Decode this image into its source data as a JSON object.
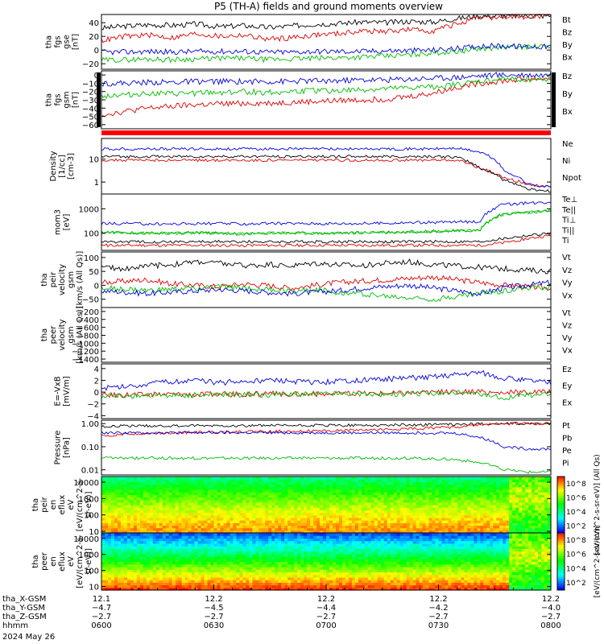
{
  "title": "P5 (TH-A) fields and ground moments overview",
  "chart_data": [
    {
      "type": "line",
      "ylabel": [
        "tha",
        "fgs",
        "gse",
        "[nT]"
      ],
      "yticks": [
        -20,
        0,
        20,
        40
      ],
      "ylim": [
        -28,
        52
      ],
      "series": [
        {
          "name": "Bt",
          "color": "#000000",
          "values": [
            32,
            35,
            37,
            36,
            38,
            34,
            36,
            33,
            35,
            38,
            39,
            41,
            40,
            42,
            41,
            46,
            50,
            50,
            50,
            50
          ]
        },
        {
          "name": "Bz",
          "color": "#dd0000",
          "values": [
            14,
            20,
            22,
            18,
            24,
            20,
            22,
            16,
            18,
            22,
            24,
            28,
            27,
            30,
            28,
            38,
            47,
            48,
            49,
            49
          ]
        },
        {
          "name": "By",
          "color": "#00bb00",
          "values": [
            -15,
            -14,
            -13,
            -14,
            -13,
            -12,
            -12,
            -14,
            -13,
            -12,
            -11,
            -10,
            -9,
            -7,
            -4,
            -2,
            2,
            4,
            5,
            5
          ]
        },
        {
          "name": "Bx",
          "color": "#0000dd",
          "values": [
            -3,
            -3,
            -2,
            -3,
            -2,
            -2,
            -2,
            -3,
            -3,
            -2,
            -2,
            -2,
            -1,
            -1,
            0,
            2,
            6,
            6,
            5,
            5
          ]
        }
      ]
    },
    {
      "type": "line",
      "ylabel": [
        "tha",
        "fgs",
        "gsm",
        "[nT]"
      ],
      "yticks": [
        -60,
        -50,
        -40,
        -30,
        -20,
        -10,
        0
      ],
      "ylim": [
        -65,
        5
      ],
      "series": [
        {
          "name": "Bz",
          "color": "#dd0000",
          "values": [
            -48,
            -44,
            -40,
            -38,
            -36,
            -35,
            -34,
            -34,
            -33,
            -32,
            -31,
            -30,
            -29,
            -26,
            -22,
            -15,
            -10,
            -7,
            -5,
            -4
          ]
        },
        {
          "name": "By",
          "color": "#00bb00",
          "values": [
            -25,
            -24,
            -22,
            -23,
            -22,
            -21,
            -20,
            -21,
            -20,
            -19,
            -19,
            -18,
            -17,
            -16,
            -14,
            -12,
            -8,
            -5,
            -5,
            -5
          ]
        },
        {
          "name": "Bx",
          "color": "#0000dd",
          "values": [
            -10,
            -10,
            -9,
            -9,
            -8,
            -8,
            -8,
            -8,
            -8,
            -7,
            -7,
            -6,
            -6,
            -5,
            -4,
            -3,
            -1,
            0,
            0,
            0
          ]
        }
      ]
    },
    {
      "type": "line",
      "scale": "log",
      "ylabel": [
        "Density",
        "[1/cc]",
        "[cm-3]"
      ],
      "yticks": [
        1,
        10
      ],
      "ylim": [
        0.3,
        80
      ],
      "series": [
        {
          "name": "Ne",
          "color": "#dd0000",
          "values": [
            9,
            9,
            9,
            9,
            9,
            9,
            9,
            9,
            9,
            9,
            9,
            9,
            9,
            9,
            9,
            9,
            4,
            1.5,
            0.8,
            0.6
          ]
        },
        {
          "name": "Ni",
          "color": "#000000",
          "values": [
            13,
            13,
            13,
            13,
            13,
            13,
            13,
            13,
            13,
            13,
            13,
            13,
            13,
            13,
            13,
            12,
            4,
            1.2,
            0.5,
            0.4
          ]
        },
        {
          "name": "Npot",
          "color": "#0000dd",
          "values": [
            28,
            28,
            28,
            28,
            28,
            28,
            28,
            28,
            28,
            28,
            28,
            28,
            28,
            28,
            28,
            30,
            20,
            3,
            0.8,
            0.6
          ]
        }
      ]
    },
    {
      "type": "line",
      "scale": "log",
      "ylabel": [
        "mom3",
        "[eV]"
      ],
      "yticks": [
        100,
        1000
      ],
      "ylim": [
        20,
        4000
      ],
      "series": [
        {
          "name": "Te⊥",
          "color": "#dd0000",
          "values": [
            32,
            32,
            32,
            32,
            32,
            32,
            32,
            32,
            32,
            32,
            32,
            32,
            32,
            32,
            32,
            32,
            32,
            40,
            60,
            80
          ]
        },
        {
          "name": "Te||",
          "color": "#000000",
          "values": [
            45,
            45,
            45,
            45,
            45,
            45,
            45,
            45,
            45,
            45,
            45,
            45,
            45,
            45,
            45,
            45,
            45,
            60,
            80,
            100
          ]
        },
        {
          "name": "Ti⊥",
          "color": "#00bb00",
          "values": [
            110,
            105,
            100,
            100,
            105,
            100,
            95,
            100,
            105,
            100,
            100,
            105,
            110,
            115,
            120,
            125,
            130,
            600,
            700,
            800
          ]
        },
        {
          "name": "Ti||",
          "color": "#00bb00",
          "values": [
            110,
            105,
            100,
            100,
            105,
            100,
            95,
            100,
            105,
            100,
            100,
            105,
            110,
            115,
            120,
            125,
            130,
            600,
            700,
            800
          ]
        },
        {
          "name": "Ti",
          "color": "#0000dd",
          "values": [
            250,
            250,
            240,
            240,
            250,
            250,
            240,
            250,
            250,
            250,
            250,
            250,
            260,
            270,
            280,
            290,
            300,
            1500,
            1700,
            1900
          ]
        }
      ]
    },
    {
      "type": "line",
      "ylabel": [
        "tha",
        "peir",
        "velocity",
        "gsm",
        "[km/s (All Qs)]"
      ],
      "yticks": [
        -50,
        0,
        50,
        100
      ],
      "ylim": [
        -80,
        120
      ],
      "series": [
        {
          "name": "Vt",
          "color": "#000000",
          "values": [
            65,
            60,
            70,
            75,
            85,
            80,
            70,
            75,
            70,
            80,
            75,
            70,
            80,
            85,
            75,
            70,
            65,
            60,
            55,
            50
          ]
        },
        {
          "name": "Vz",
          "color": "#dd0000",
          "values": [
            10,
            15,
            20,
            5,
            0,
            -5,
            5,
            0,
            -10,
            0,
            10,
            15,
            20,
            25,
            30,
            20,
            10,
            0,
            -5,
            -10
          ]
        },
        {
          "name": "Vy",
          "color": "#00bb00",
          "values": [
            -10,
            -15,
            -20,
            -15,
            -10,
            -5,
            -10,
            -15,
            -20,
            -15,
            -25,
            -30,
            -40,
            -45,
            -50,
            -40,
            -30,
            -20,
            -10,
            -5
          ]
        },
        {
          "name": "Vx",
          "color": "#0000dd",
          "values": [
            -20,
            -25,
            -30,
            -25,
            -20,
            -15,
            -20,
            -25,
            -30,
            -25,
            -20,
            -10,
            -5,
            0,
            -10,
            -20,
            -30,
            -10,
            0,
            10
          ]
        }
      ]
    },
    {
      "type": "line",
      "ylabel": [
        "tha",
        "peer",
        "velocity",
        "gsm",
        "[km/s (All Qs)]"
      ],
      "yticks": [
        -1400,
        -1200,
        -1000,
        -800,
        -600,
        -400,
        -200
      ],
      "ylim": [
        -1480,
        -100
      ],
      "series": [
        {
          "name": "Vt",
          "color": "#000000",
          "values": []
        },
        {
          "name": "Vz",
          "color": "#dd0000",
          "values": []
        },
        {
          "name": "Vy",
          "color": "#00bb00",
          "values": []
        },
        {
          "name": "Vx",
          "color": "#0000dd",
          "values": []
        }
      ]
    },
    {
      "type": "line",
      "ylabel": [
        "E=-VxB",
        "[mV/m]"
      ],
      "yticks": [
        -4,
        -2,
        0,
        2,
        4
      ],
      "ylim": [
        -4.5,
        4.8
      ],
      "series": [
        {
          "name": "Ez",
          "color": "#dd0000",
          "values": [
            -0.5,
            -0.4,
            -0.4,
            -0.3,
            -0.4,
            -0.3,
            -0.4,
            -0.3,
            -0.3,
            -0.3,
            -0.3,
            -0.2,
            -0.2,
            -0.1,
            0,
            0,
            0,
            -0.1,
            0,
            0
          ]
        },
        {
          "name": "Ey",
          "color": "#00bb00",
          "values": [
            -0.7,
            -0.6,
            -0.5,
            -0.6,
            -0.5,
            -0.5,
            -0.4,
            -0.5,
            -0.4,
            -0.3,
            -0.2,
            -0.3,
            -0.4,
            -0.3,
            -0.2,
            -0.1,
            -0.5,
            -1,
            -0.5,
            -0.4
          ]
        },
        {
          "name": "Ex",
          "color": "#0000dd",
          "values": [
            0.6,
            1.0,
            1.4,
            1.8,
            2.0,
            1.6,
            1.8,
            2.0,
            1.8,
            1.6,
            1.8,
            2.0,
            2.2,
            2.4,
            2.6,
            3.0,
            3.4,
            2.4,
            2.0,
            1.6
          ]
        }
      ]
    },
    {
      "type": "line",
      "scale": "log",
      "ylabel": [
        "Pressure",
        "[nPa]"
      ],
      "yticks": [
        0.01,
        0.1,
        1
      ],
      "ylim": [
        0.006,
        1.4
      ],
      "ytick_labels": [
        "0.01",
        "0.10",
        "1.00"
      ],
      "series": [
        {
          "name": "Pt",
          "color": "#000000",
          "values": [
            0.75,
            0.78,
            0.8,
            0.78,
            0.8,
            0.82,
            0.8,
            0.82,
            0.82,
            0.83,
            0.84,
            0.85,
            0.86,
            0.88,
            0.9,
            0.92,
            0.95,
            1.0,
            1.0,
            1.0
          ]
        },
        {
          "name": "Pb",
          "color": "#dd0000",
          "values": [
            0.3,
            0.35,
            0.38,
            0.4,
            0.42,
            0.44,
            0.45,
            0.46,
            0.47,
            0.48,
            0.5,
            0.52,
            0.55,
            0.6,
            0.65,
            0.7,
            0.9,
            1.0,
            1.0,
            1.0
          ]
        },
        {
          "name": "Pe",
          "color": "#00bb00",
          "values": [
            0.032,
            0.032,
            0.032,
            0.032,
            0.032,
            0.032,
            0.032,
            0.032,
            0.032,
            0.032,
            0.032,
            0.032,
            0.032,
            0.032,
            0.03,
            0.028,
            0.02,
            0.01,
            0.008,
            0.008
          ]
        },
        {
          "name": "Pi",
          "color": "#0000dd",
          "values": [
            0.4,
            0.4,
            0.4,
            0.4,
            0.4,
            0.4,
            0.4,
            0.4,
            0.4,
            0.4,
            0.4,
            0.4,
            0.4,
            0.4,
            0.4,
            0.38,
            0.25,
            0.1,
            0.08,
            0.08
          ]
        }
      ]
    },
    {
      "type": "heatmap",
      "ylabel": [
        "tha",
        "peir",
        "en",
        "eflux",
        "eV",
        "[eV/(cm^2-s-",
        "sr-eV)]"
      ],
      "scale": "log",
      "yticks": [
        10,
        100,
        1000,
        10000
      ],
      "ylim": [
        8,
        22000
      ],
      "colorbar": {
        "ticks": [
          "10^2",
          "10^4",
          "10^6",
          "10^8"
        ],
        "label": "[eV/(cm^2-s-sr-eV)] (All Qs)"
      }
    },
    {
      "type": "heatmap",
      "ylabel": [
        "tha",
        "peer",
        "en",
        "eflux",
        "eV",
        "[eV/(cm^2-s-",
        "sr-eV)]"
      ],
      "scale": "log",
      "yticks": [
        10,
        100,
        1000,
        10000
      ],
      "ylim": [
        6,
        22000
      ],
      "colorbar": {
        "ticks": [
          "10^2",
          "10^4",
          "10^6",
          "10^8"
        ],
        "label": "[eV/(cm^2-s-sr-eV)]"
      }
    }
  ],
  "xaxis": {
    "rows": [
      {
        "label": "tha_X-GSM",
        "values": [
          "12.1",
          "12.2",
          "12.2",
          "12.2",
          "12.2"
        ]
      },
      {
        "label": "tha_Y-GSM",
        "values": [
          "-4.7",
          "-4.5",
          "-4.4",
          "-4.2",
          "-4.0"
        ]
      },
      {
        "label": "tha_Z-GSM",
        "values": [
          "-2.7",
          "-2.7",
          "-2.7",
          "-2.7",
          "-2.7"
        ]
      },
      {
        "label": "hhmm",
        "values": [
          "0600",
          "0630",
          "0700",
          "0730",
          "0800"
        ]
      }
    ],
    "date": "2024 May 26"
  }
}
